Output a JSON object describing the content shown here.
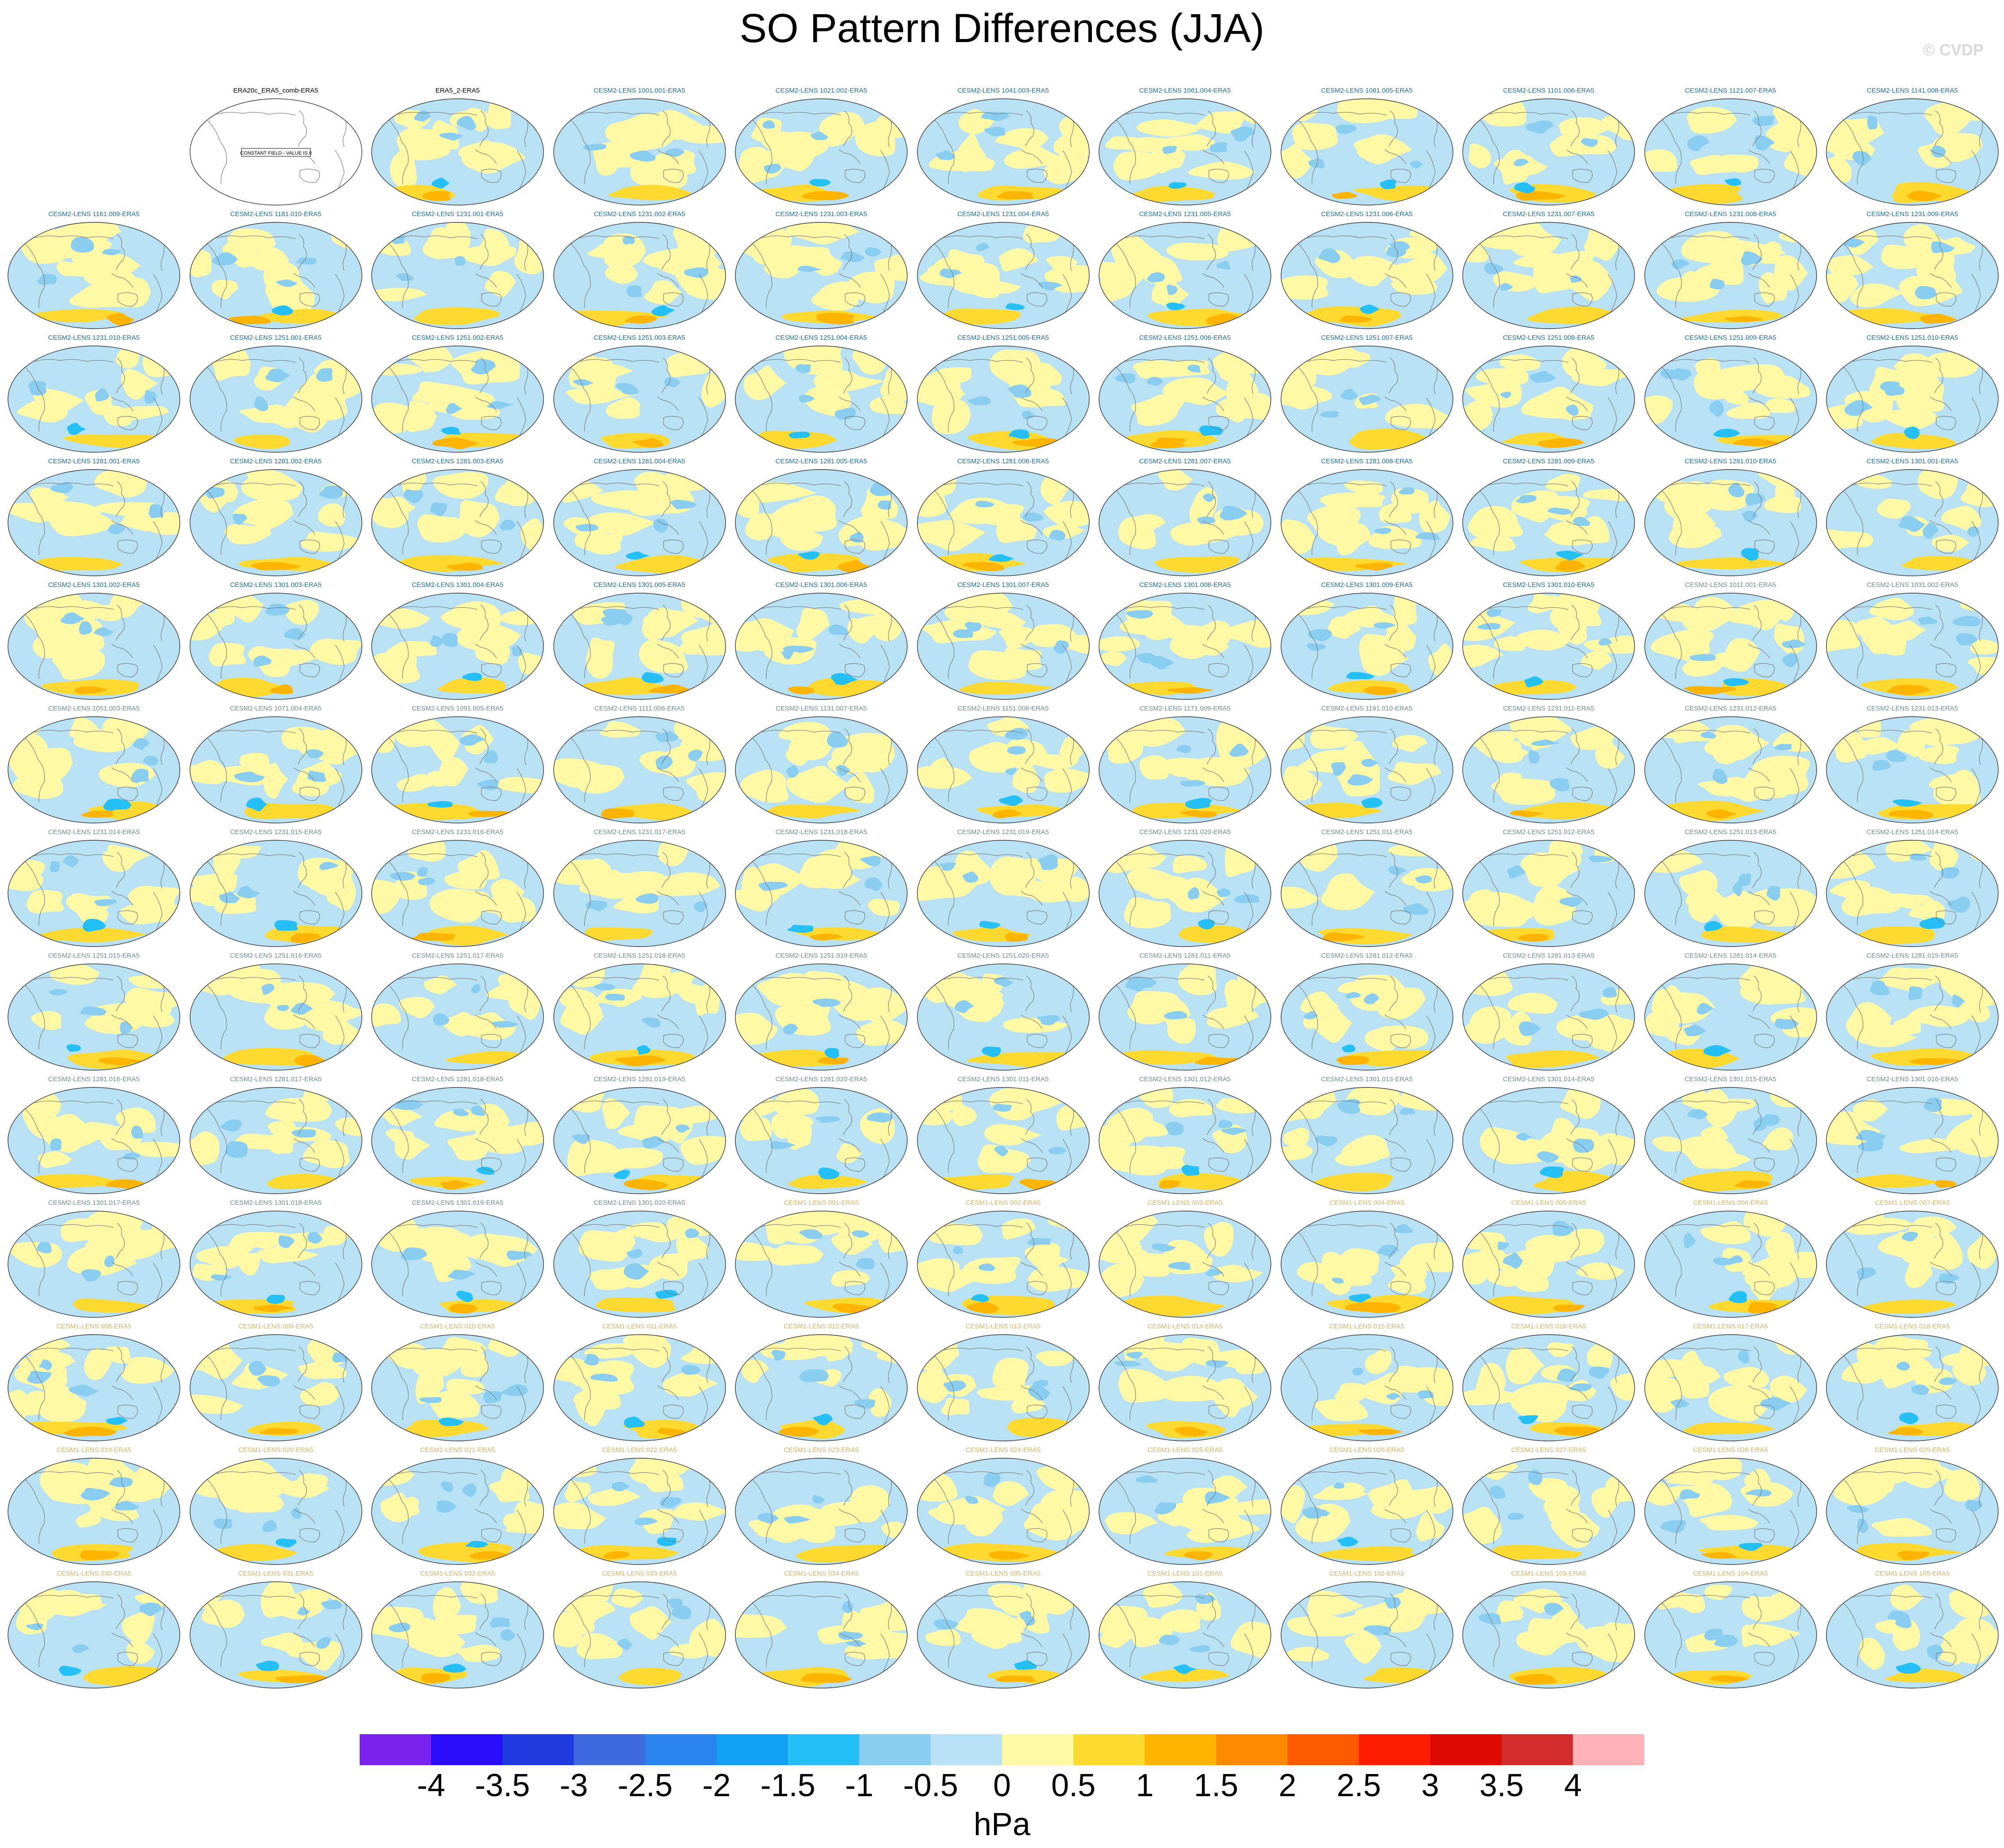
{
  "title": "SO Pattern Differences (JJA)",
  "copyright": "© CVDP",
  "colorbar": {
    "unit": "hPa",
    "tick_labels": [
      "-4",
      "-3.5",
      "-3",
      "-2.5",
      "-2",
      "-1.5",
      "-1",
      "-0.5",
      "0",
      "0.5",
      "1",
      "1.5",
      "2",
      "2.5",
      "3",
      "3.5",
      "4"
    ],
    "colors": [
      "#7b22ee",
      "#2a0dfb",
      "#1f3be0",
      "#3d6bdc",
      "#2b85f0",
      "#12a2f5",
      "#25c0f7",
      "#89cdf0",
      "#b8e2f4",
      "#fff9a6",
      "#fed930",
      "#ffb400",
      "#ff8a00",
      "#ff5a00",
      "#ff1e00",
      "#dd0a00",
      "#d42b2b",
      "#ffb3b3"
    ]
  },
  "panels": [
    {
      "label": "ERA20c_ERA5_comb-ERA5",
      "group": "obs",
      "constant": true,
      "constant_text": "CONSTANT FIELD - VALUE IS 0"
    },
    {
      "label": "ERA5_2-ERA5",
      "group": "obs"
    },
    {
      "label": "CESM2-LENS 1001.001-ERA5",
      "group": "cesm2a"
    },
    {
      "label": "CESM2-LENS 1021.002-ERA5",
      "group": "cesm2a"
    },
    {
      "label": "CESM2-LENS 1041.003-ERA5",
      "group": "cesm2a"
    },
    {
      "label": "CESM2-LENS 1061.004-ERA5",
      "group": "cesm2a"
    },
    {
      "label": "CESM2-LENS 1081.005-ERA5",
      "group": "cesm2a"
    },
    {
      "label": "CESM2-LENS 1101.006-ERA5",
      "group": "cesm2a"
    },
    {
      "label": "CESM2-LENS 1121.007-ERA5",
      "group": "cesm2a"
    },
    {
      "label": "CESM2-LENS 1141.008-ERA5",
      "group": "cesm2a"
    },
    {
      "label": "CESM2-LENS 1161.009-ERA5",
      "group": "cesm2a"
    },
    {
      "label": "CESM2-LENS 1181.010-ERA5",
      "group": "cesm2a"
    },
    {
      "label": "CESM2-LENS 1231.001-ERA5",
      "group": "cesm2a"
    },
    {
      "label": "CESM2-LENS 1231.002-ERA5",
      "group": "cesm2a"
    },
    {
      "label": "CESM2-LENS 1231.003-ERA5",
      "group": "cesm2a"
    },
    {
      "label": "CESM2-LENS 1231.004-ERA5",
      "group": "cesm2a"
    },
    {
      "label": "CESM2-LENS 1231.005-ERA5",
      "group": "cesm2a"
    },
    {
      "label": "CESM2-LENS 1231.006-ERA5",
      "group": "cesm2a"
    },
    {
      "label": "CESM2-LENS 1231.007-ERA5",
      "group": "cesm2a"
    },
    {
      "label": "CESM2-LENS 1231.008-ERA5",
      "group": "cesm2a"
    },
    {
      "label": "CESM2-LENS 1231.009-ERA5",
      "group": "cesm2a"
    },
    {
      "label": "CESM2-LENS 1231.010-ERA5",
      "group": "cesm2a"
    },
    {
      "label": "CESM2-LENS 1251.001-ERA5",
      "group": "cesm2a"
    },
    {
      "label": "CESM2-LENS 1251.002-ERA5",
      "group": "cesm2a"
    },
    {
      "label": "CESM2-LENS 1251.003-ERA5",
      "group": "cesm2a"
    },
    {
      "label": "CESM2-LENS 1251.004-ERA5",
      "group": "cesm2a"
    },
    {
      "label": "CESM2-LENS 1251.005-ERA5",
      "group": "cesm2a"
    },
    {
      "label": "CESM2-LENS 1251.006-ERA5",
      "group": "cesm2a"
    },
    {
      "label": "CESM2-LENS 1251.007-ERA5",
      "group": "cesm2a"
    },
    {
      "label": "CESM2-LENS 1251.008-ERA5",
      "group": "cesm2a"
    },
    {
      "label": "CESM2-LENS 1251.009-ERA5",
      "group": "cesm2a"
    },
    {
      "label": "CESM2-LENS 1251.010-ERA5",
      "group": "cesm2a"
    },
    {
      "label": "CESM2-LENS 1281.001-ERA5",
      "group": "cesm2a"
    },
    {
      "label": "CESM2-LENS 1281.002-ERA5",
      "group": "cesm2a"
    },
    {
      "label": "CESM2-LENS 1281.003-ERA5",
      "group": "cesm2a"
    },
    {
      "label": "CESM2-LENS 1281.004-ERA5",
      "group": "cesm2a"
    },
    {
      "label": "CESM2-LENS 1281.005-ERA5",
      "group": "cesm2a"
    },
    {
      "label": "CESM2-LENS 1281.006-ERA5",
      "group": "cesm2a"
    },
    {
      "label": "CESM2-LENS 1281.007-ERA5",
      "group": "cesm2a"
    },
    {
      "label": "CESM2-LENS 1281.008-ERA5",
      "group": "cesm2a"
    },
    {
      "label": "CESM2-LENS 1281.009-ERA5",
      "group": "cesm2a"
    },
    {
      "label": "CESM2-LENS 1281.010-ERA5",
      "group": "cesm2a"
    },
    {
      "label": "CESM2-LENS 1301.001-ERA5",
      "group": "cesm2a"
    },
    {
      "label": "CESM2-LENS 1301.002-ERA5",
      "group": "cesm2a"
    },
    {
      "label": "CESM2-LENS 1301.003-ERA5",
      "group": "cesm2a"
    },
    {
      "label": "CESM2-LENS 1301.004-ERA5",
      "group": "cesm2a"
    },
    {
      "label": "CESM2-LENS 1301.005-ERA5",
      "group": "cesm2a"
    },
    {
      "label": "CESM2-LENS 1301.006-ERA5",
      "group": "cesm2a"
    },
    {
      "label": "CESM2-LENS 1301.007-ERA5",
      "group": "cesm2a"
    },
    {
      "label": "CESM2-LENS 1301.008-ERA5",
      "group": "cesm2a"
    },
    {
      "label": "CESM2-LENS 1301.009-ERA5",
      "group": "cesm2a"
    },
    {
      "label": "CESM2-LENS 1301.010-ERA5",
      "group": "cesm2a"
    },
    {
      "label": "CESM2-LENS 1011.001-ERA5",
      "group": "cesm2b"
    },
    {
      "label": "CESM2-LENS 1031.002-ERA5",
      "group": "cesm2b"
    },
    {
      "label": "CESM2-LENS 1051.003-ERA5",
      "group": "cesm2b"
    },
    {
      "label": "CESM2-LENS 1071.004-ERA5",
      "group": "cesm2b"
    },
    {
      "label": "CESM2-LENS 1091.005-ERA5",
      "group": "cesm2b"
    },
    {
      "label": "CESM2-LENS 1111.006-ERA5",
      "group": "cesm2b"
    },
    {
      "label": "CESM2-LENS 1131.007-ERA5",
      "group": "cesm2b"
    },
    {
      "label": "CESM2-LENS 1151.008-ERA5",
      "group": "cesm2b"
    },
    {
      "label": "CESM2-LENS 1171.009-ERA5",
      "group": "cesm2b"
    },
    {
      "label": "CESM2-LENS 1191.010-ERA5",
      "group": "cesm2b"
    },
    {
      "label": "CESM2-LENS 1231.011-ERA5",
      "group": "cesm2b"
    },
    {
      "label": "CESM2-LENS 1231.012-ERA5",
      "group": "cesm2b"
    },
    {
      "label": "CESM2-LENS 1231.013-ERA5",
      "group": "cesm2b"
    },
    {
      "label": "CESM2-LENS 1231.014-ERA5",
      "group": "cesm2b"
    },
    {
      "label": "CESM2-LENS 1231.015-ERA5",
      "group": "cesm2b"
    },
    {
      "label": "CESM2-LENS 1231.016-ERA5",
      "group": "cesm2b"
    },
    {
      "label": "CESM2-LENS 1231.017-ERA5",
      "group": "cesm2b"
    },
    {
      "label": "CESM2-LENS 1231.018-ERA5",
      "group": "cesm2b"
    },
    {
      "label": "CESM2-LENS 1231.019-ERA5",
      "group": "cesm2b"
    },
    {
      "label": "CESM2-LENS 1231.020-ERA5",
      "group": "cesm2b"
    },
    {
      "label": "CESM2-LENS 1251.011-ERA5",
      "group": "cesm2b"
    },
    {
      "label": "CESM2-LENS 1251.012-ERA5",
      "group": "cesm2b"
    },
    {
      "label": "CESM2-LENS 1251.013-ERA5",
      "group": "cesm2b"
    },
    {
      "label": "CESM2-LENS 1251.014-ERA5",
      "group": "cesm2b"
    },
    {
      "label": "CESM2-LENS 1251.015-ERA5",
      "group": "cesm2b"
    },
    {
      "label": "CESM2-LENS 1251.016-ERA5",
      "group": "cesm2b"
    },
    {
      "label": "CESM2-LENS 1251.017-ERA5",
      "group": "cesm2b"
    },
    {
      "label": "CESM2-LENS 1251.018-ERA5",
      "group": "cesm2b"
    },
    {
      "label": "CESM2-LENS 1251.019-ERA5",
      "group": "cesm2b"
    },
    {
      "label": "CESM2-LENS 1251.020-ERA5",
      "group": "cesm2b"
    },
    {
      "label": "CESM2-LENS 1281.011-ERA5",
      "group": "cesm2b"
    },
    {
      "label": "CESM2-LENS 1281.012-ERA5",
      "group": "cesm2b"
    },
    {
      "label": "CESM2-LENS 1281.013-ERA5",
      "group": "cesm2b"
    },
    {
      "label": "CESM2-LENS 1281.014-ERA5",
      "group": "cesm2b"
    },
    {
      "label": "CESM2-LENS 1281.015-ERA5",
      "group": "cesm2b"
    },
    {
      "label": "CESM2-LENS 1281.016-ERA5",
      "group": "cesm2b"
    },
    {
      "label": "CESM2-LENS 1281.017-ERA5",
      "group": "cesm2b"
    },
    {
      "label": "CESM2-LENS 1281.018-ERA5",
      "group": "cesm2b"
    },
    {
      "label": "CESM2-LENS 1281.019-ERA5",
      "group": "cesm2b"
    },
    {
      "label": "CESM2-LENS 1281.020-ERA5",
      "group": "cesm2b"
    },
    {
      "label": "CESM2-LENS 1301.011-ERA5",
      "group": "cesm2b"
    },
    {
      "label": "CESM2-LENS 1301.012-ERA5",
      "group": "cesm2b"
    },
    {
      "label": "CESM2-LENS 1301.013-ERA5",
      "group": "cesm2b"
    },
    {
      "label": "CESM2-LENS 1301.014-ERA5",
      "group": "cesm2b"
    },
    {
      "label": "CESM2-LENS 1301.015-ERA5",
      "group": "cesm2b"
    },
    {
      "label": "CESM2-LENS 1301.016-ERA5",
      "group": "cesm2b"
    },
    {
      "label": "CESM2-LENS 1301.017-ERA5",
      "group": "cesm2b"
    },
    {
      "label": "CESM2-LENS 1301.018-ERA5",
      "group": "cesm2b"
    },
    {
      "label": "CESM2-LENS 1301.019-ERA5",
      "group": "cesm2b"
    },
    {
      "label": "CESM2-LENS 1301.020-ERA5",
      "group": "cesm2b"
    },
    {
      "label": "CESM1-LENS 001-ERA5",
      "group": "cesm1"
    },
    {
      "label": "CESM1-LENS 002-ERA5",
      "group": "cesm1"
    },
    {
      "label": "CESM1-LENS 003-ERA5",
      "group": "cesm1"
    },
    {
      "label": "CESM1-LENS 004-ERA5",
      "group": "cesm1"
    },
    {
      "label": "CESM1-LENS 005-ERA5",
      "group": "cesm1"
    },
    {
      "label": "CESM1-LENS 006-ERA5",
      "group": "cesm1"
    },
    {
      "label": "CESM1-LENS 007-ERA5",
      "group": "cesm1"
    },
    {
      "label": "CESM1-LENS 008-ERA5",
      "group": "cesm1"
    },
    {
      "label": "CESM1-LENS 009-ERA5",
      "group": "cesm1"
    },
    {
      "label": "CESM1-LENS 010-ERA5",
      "group": "cesm1"
    },
    {
      "label": "CESM1-LENS 011-ERA5",
      "group": "cesm1"
    },
    {
      "label": "CESM1-LENS 012-ERA5",
      "group": "cesm1"
    },
    {
      "label": "CESM1-LENS 013-ERA5",
      "group": "cesm1"
    },
    {
      "label": "CESM1-LENS 014-ERA5",
      "group": "cesm1"
    },
    {
      "label": "CESM1-LENS 015-ERA5",
      "group": "cesm1"
    },
    {
      "label": "CESM1-LENS 016-ERA5",
      "group": "cesm1"
    },
    {
      "label": "CESM1-LENS 017-ERA5",
      "group": "cesm1"
    },
    {
      "label": "CESM1-LENS 018-ERA5",
      "group": "cesm1"
    },
    {
      "label": "CESM1-LENS 019-ERA5",
      "group": "cesm1"
    },
    {
      "label": "CESM1-LENS 020-ERA5",
      "group": "cesm1"
    },
    {
      "label": "CESM1-LENS 021-ERA5",
      "group": "cesm1"
    },
    {
      "label": "CESM1-LENS 022-ERA5",
      "group": "cesm1"
    },
    {
      "label": "CESM1-LENS 023-ERA5",
      "group": "cesm1"
    },
    {
      "label": "CESM1-LENS 024-ERA5",
      "group": "cesm1"
    },
    {
      "label": "CESM1-LENS 025-ERA5",
      "group": "cesm1"
    },
    {
      "label": "CESM1-LENS 026-ERA5",
      "group": "cesm1"
    },
    {
      "label": "CESM1-LENS 027-ERA5",
      "group": "cesm1"
    },
    {
      "label": "CESM1-LENS 028-ERA5",
      "group": "cesm1"
    },
    {
      "label": "CESM1-LENS 029-ERA5",
      "group": "cesm1"
    },
    {
      "label": "CESM1-LENS 030-ERA5",
      "group": "cesm1"
    },
    {
      "label": "CESM1-LENS 031-ERA5",
      "group": "cesm1"
    },
    {
      "label": "CESM1-LENS 032-ERA5",
      "group": "cesm1"
    },
    {
      "label": "CESM1-LENS 033-ERA5",
      "group": "cesm1"
    },
    {
      "label": "CESM1-LENS 034-ERA5",
      "group": "cesm1"
    },
    {
      "label": "CESM1-LENS 035-ERA5",
      "group": "cesm1"
    },
    {
      "label": "CESM1-LENS 101-ERA5",
      "group": "cesm1"
    },
    {
      "label": "CESM1-LENS 102-ERA5",
      "group": "cesm1"
    },
    {
      "label": "CESM1-LENS 103-ERA5",
      "group": "cesm1"
    },
    {
      "label": "CESM1-LENS 104-ERA5",
      "group": "cesm1"
    },
    {
      "label": "CESM1-LENS 105-ERA5",
      "group": "cesm1"
    }
  ],
  "label_colors": {
    "obs": "#000000",
    "cesm2a": "#1f6f9f",
    "cesm2b": "#6f8f8f",
    "cesm1": "#d8b46a"
  },
  "map_colors": {
    "ocean_base": "#b8e2f4",
    "pos": "#fff9a6",
    "pos2": "#fed930",
    "pos3": "#ffb400",
    "neg": "#89cdf0",
    "neg2": "#25c0f7",
    "neg3": "#2b85f0",
    "coast": "#7a7a7a",
    "border": "#333333"
  }
}
